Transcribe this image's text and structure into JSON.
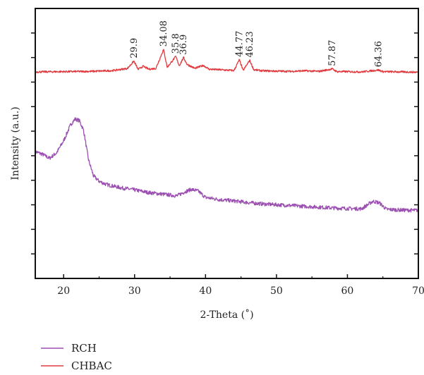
{
  "chart_data": {
    "type": "line",
    "xlabel": "2-Theta (˚)",
    "ylabel": "Intensity (a.u.)",
    "xlim": [
      16,
      70
    ],
    "x_ticks": [
      20,
      30,
      40,
      50,
      60,
      70
    ],
    "y_ticks_labeled": false,
    "ylim": [
      0,
      100
    ],
    "grid": false,
    "legend_placement": "bottom-left, outside plot",
    "series": [
      {
        "name": "RCH",
        "color": "#9b4fb1",
        "points": [
          [
            16,
            47.0
          ],
          [
            17,
            46.0
          ],
          [
            18,
            44.5
          ],
          [
            19,
            46.5
          ],
          [
            20,
            51.0
          ],
          [
            21,
            57.0
          ],
          [
            21.6,
            59.0
          ],
          [
            22.2,
            58.5
          ],
          [
            22.8,
            55.0
          ],
          [
            23.5,
            44.0
          ],
          [
            24.2,
            38.0
          ],
          [
            25,
            36.0
          ],
          [
            26,
            34.8
          ],
          [
            28,
            33.6
          ],
          [
            30,
            32.8
          ],
          [
            32,
            31.8
          ],
          [
            34,
            31.2
          ],
          [
            36,
            30.6
          ],
          [
            37,
            32.0
          ],
          [
            38,
            33.0
          ],
          [
            39,
            32.3
          ],
          [
            40,
            30.0
          ],
          [
            42,
            29.2
          ],
          [
            44,
            28.7
          ],
          [
            46,
            28.1
          ],
          [
            48,
            27.6
          ],
          [
            50,
            27.3
          ],
          [
            52,
            27.0
          ],
          [
            54,
            26.7
          ],
          [
            56,
            26.4
          ],
          [
            58,
            26.1
          ],
          [
            60,
            25.9
          ],
          [
            62,
            25.8
          ],
          [
            62.8,
            27.2
          ],
          [
            63.6,
            28.6
          ],
          [
            64.5,
            28.0
          ],
          [
            65.5,
            25.6
          ],
          [
            67,
            25.4
          ],
          [
            68,
            25.3
          ],
          [
            70,
            25.2
          ]
        ],
        "noise": 0.7
      },
      {
        "name": "CHBAC",
        "color": "#e03a3e",
        "points": [
          [
            16,
            76.5
          ],
          [
            20,
            76.6
          ],
          [
            24,
            76.7
          ],
          [
            27,
            77.0
          ],
          [
            29,
            77.8
          ],
          [
            29.9,
            80.5
          ],
          [
            30.5,
            77.4
          ],
          [
            31.2,
            78.6
          ],
          [
            32,
            77.5
          ],
          [
            33,
            77.8
          ],
          [
            34.08,
            84.8
          ],
          [
            34.6,
            78.2
          ],
          [
            35.8,
            82.2
          ],
          [
            36.3,
            78.8
          ],
          [
            36.9,
            81.8
          ],
          [
            37.4,
            79.3
          ],
          [
            38.5,
            77.8
          ],
          [
            39.7,
            78.9
          ],
          [
            40.5,
            77.5
          ],
          [
            42,
            77.3
          ],
          [
            44,
            77.0
          ],
          [
            44.77,
            81.0
          ],
          [
            45.3,
            77.0
          ],
          [
            46.23,
            80.8
          ],
          [
            46.8,
            77.3
          ],
          [
            48,
            76.9
          ],
          [
            50,
            76.8
          ],
          [
            52,
            76.7
          ],
          [
            54,
            76.9
          ],
          [
            56,
            76.7
          ],
          [
            57.87,
            77.6
          ],
          [
            58.5,
            76.6
          ],
          [
            60,
            76.6
          ],
          [
            62,
            76.5
          ],
          [
            64.36,
            77.2
          ],
          [
            65,
            76.6
          ],
          [
            70,
            76.4
          ]
        ],
        "noise": 0.35
      }
    ],
    "annotations": [
      {
        "label": "29.9",
        "x": 29.9
      },
      {
        "label": "34.08",
        "x": 34.08
      },
      {
        "label": "35.8",
        "x": 35.8
      },
      {
        "label": "36.9",
        "x": 36.9
      },
      {
        "label": "44.77",
        "x": 44.77
      },
      {
        "label": "46.23",
        "x": 46.23
      },
      {
        "label": "57.87",
        "x": 57.87
      },
      {
        "label": "64.36",
        "x": 64.36
      }
    ]
  },
  "legend": {
    "items": [
      {
        "label": "RCH",
        "color": "#9b4fb1"
      },
      {
        "label": "CHBAC",
        "color": "#e03a3e"
      }
    ]
  }
}
